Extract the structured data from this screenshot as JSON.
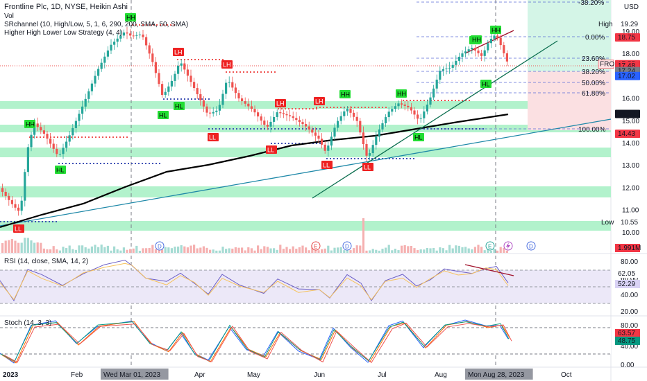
{
  "header": {
    "title": "Frontline Plc, 1D, NYSE, Heikin Ashi",
    "vol_label": "Vol",
    "srchannel_label": "SRchannel (10, High/Low, 5, 1, 6, 290, 200, SMA, 50, SMA)",
    "strategy_label": "Higher High Lower Low Strategy (4, 4)",
    "currency": "USD"
  },
  "price_axis": {
    "ticks": [
      "19.00",
      "18.00",
      "17.00",
      "16.00",
      "15.00",
      "14.00",
      "13.00",
      "12.00",
      "11.00",
      "10.00"
    ],
    "high_label": "High",
    "high_value": "19.29",
    "low_label": "Low",
    "low_value": "10.55",
    "tags": [
      {
        "value": "18.75",
        "color": "#f23645"
      },
      {
        "value": "17.55",
        "color": "#f23645",
        "prefix": "FRO"
      },
      {
        "value": "17.48",
        "color": "#f23645"
      },
      {
        "value": "17.24",
        "color": "#787b86"
      },
      {
        "value": "17.02",
        "color": "#2962ff"
      },
      {
        "value": "15.32",
        "color": "#131722"
      },
      {
        "value": "14.43",
        "color": "#f23645"
      }
    ],
    "volume_tag": "1.991M"
  },
  "fib_levels": [
    "-38.20%",
    "0.00%",
    "23.60%",
    "38.20%",
    "50.00%",
    "61.80%",
    "100.00%"
  ],
  "time_axis": {
    "labels": [
      "2023",
      "Feb",
      "Wed Mar 01, 2023",
      "Apr",
      "May",
      "Jun",
      "Jul",
      "Aug",
      "Mon Aug 28, 2023",
      "Oct"
    ]
  },
  "rsi": {
    "label": "RSI (14, close, SMA, 14, 2)",
    "ticks": [
      "80.00",
      "60.00",
      "40.00",
      "20.00"
    ],
    "value_tags": [
      "62.05",
      "52.29"
    ]
  },
  "stoch": {
    "label": "Stoch (14, 3, 3)",
    "ticks": [
      "80.00",
      "40.00",
      "0.00"
    ],
    "value_tags": [
      "63.57",
      "48.75"
    ]
  },
  "markers": [
    {
      "text": "HH",
      "kind": "hh"
    },
    {
      "text": "HH",
      "kind": "hh"
    },
    {
      "text": "HL",
      "kind": "hh"
    },
    {
      "text": "LL",
      "kind": "ll"
    },
    {
      "text": "HH",
      "kind": "hh"
    },
    {
      "text": "LH",
      "kind": "ll"
    },
    {
      "text": "HL",
      "kind": "hh"
    },
    {
      "text": "HL",
      "kind": "hh"
    },
    {
      "text": "LL",
      "kind": "ll"
    },
    {
      "text": "LH",
      "kind": "ll"
    },
    {
      "text": "LL",
      "kind": "ll"
    },
    {
      "text": "LH",
      "kind": "ll"
    },
    {
      "text": "LH",
      "kind": "ll"
    },
    {
      "text": "LL",
      "kind": "ll"
    },
    {
      "text": "HH",
      "kind": "hh"
    },
    {
      "text": "LL",
      "kind": "ll"
    },
    {
      "text": "HH",
      "kind": "hh"
    },
    {
      "text": "HL",
      "kind": "hh"
    },
    {
      "text": "HH",
      "kind": "hh"
    },
    {
      "text": "HH",
      "kind": "hh"
    },
    {
      "text": "HL",
      "kind": "hh"
    }
  ],
  "events": [
    "D",
    "E",
    "D",
    "E",
    "D"
  ],
  "colors": {
    "up": "#26a69a",
    "down": "#ef5350",
    "hh": "#22dd33",
    "ll": "#ee2222",
    "zone": "#b2f2cc",
    "sma": "#000000",
    "trend": "#0b6e4f",
    "channel": "#1e88a8",
    "fib": "#5b6bd6"
  }
}
